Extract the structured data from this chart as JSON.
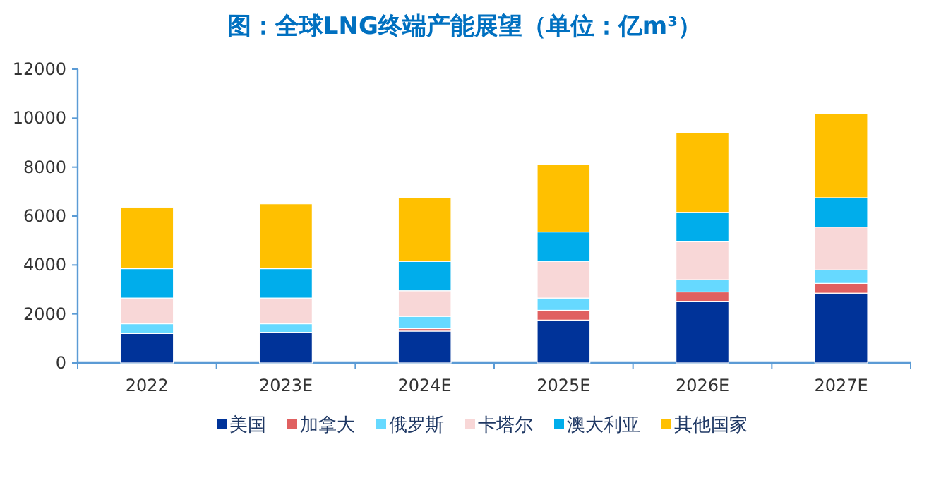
{
  "chart_data": {
    "type": "bar",
    "stacked": true,
    "title": "图：全球LNG终端产能展望（单位：亿m³）",
    "categories": [
      "2022",
      "2023E",
      "2024E",
      "2025E",
      "2026E",
      "2027E"
    ],
    "ylim": [
      0,
      12000
    ],
    "yticks": [
      0,
      2000,
      4000,
      6000,
      8000,
      10000,
      12000
    ],
    "legend": "bottom",
    "grid": false,
    "series": [
      {
        "name": "美国",
        "color": "#003399",
        "values": [
          1200,
          1250,
          1300,
          1750,
          2500,
          2850
        ]
      },
      {
        "name": "加拿大",
        "color": "#e06060",
        "values": [
          0,
          null,
          100,
          400,
          400,
          400
        ]
      },
      {
        "name": "俄罗斯",
        "color": "#66d9ff",
        "values": [
          400,
          350,
          500,
          500,
          500,
          550
        ]
      },
      {
        "name": "卡塔尔",
        "color": "#f8d7d7",
        "values": [
          1050,
          1050,
          1050,
          1500,
          1550,
          1750
        ]
      },
      {
        "name": "澳大利亚",
        "color": "#00adeb",
        "values": [
          1200,
          1200,
          1200,
          1200,
          1200,
          1200
        ]
      },
      {
        "name": "其他国家",
        "color": "#ffc000",
        "values": [
          2500,
          2650,
          2600,
          2750,
          3250,
          3450
        ]
      }
    ]
  }
}
